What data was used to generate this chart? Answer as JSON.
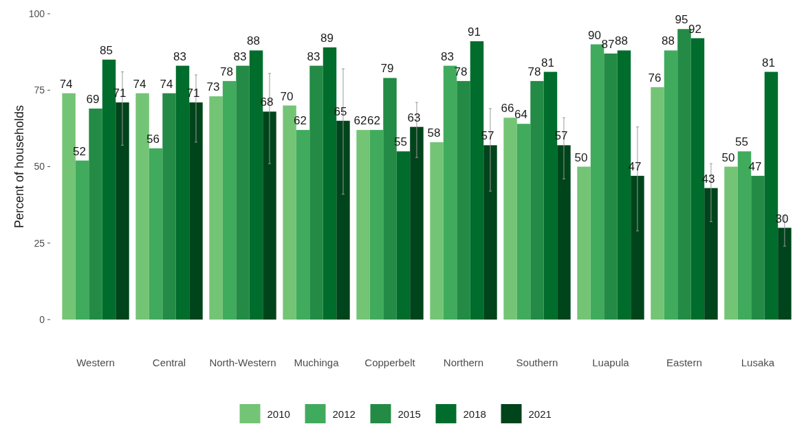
{
  "chart_data": {
    "type": "bar",
    "ylabel": "Percent of households",
    "categories": [
      "Western",
      "Central",
      "North-Western",
      "Muchinga",
      "Copperbelt",
      "Northern",
      "Southern",
      "Luapula",
      "Eastern",
      "Lusaka"
    ],
    "series": [
      {
        "name": "2010",
        "color": "#74c476",
        "values": [
          74,
          74,
          73,
          70,
          62,
          58,
          66,
          50,
          76,
          50
        ]
      },
      {
        "name": "2012",
        "color": "#41ab5d",
        "values": [
          52,
          56,
          78,
          62,
          62,
          83,
          64,
          90,
          88,
          55
        ]
      },
      {
        "name": "2015",
        "color": "#238b45",
        "values": [
          69,
          74,
          83,
          83,
          79,
          78,
          78,
          87,
          95,
          47
        ]
      },
      {
        "name": "2018",
        "color": "#006d2c",
        "values": [
          85,
          83,
          88,
          89,
          55,
          91,
          81,
          88,
          92,
          81
        ]
      },
      {
        "name": "2021",
        "color": "#00441b",
        "values": [
          71,
          71,
          68,
          65,
          63,
          57,
          57,
          47,
          43,
          30
        ],
        "errors": [
          [
            57,
            81
          ],
          [
            58,
            80
          ],
          [
            51,
            80.5
          ],
          [
            41,
            82
          ],
          [
            53,
            71
          ],
          [
            42,
            69
          ],
          [
            46,
            66
          ],
          [
            29,
            63
          ],
          [
            32,
            51
          ],
          [
            24,
            34
          ]
        ]
      }
    ],
    "ylim": [
      0,
      100
    ],
    "yticks": [
      0,
      25,
      50,
      75,
      100
    ],
    "grid": false,
    "legend": "bottom",
    "data_labels": true
  }
}
